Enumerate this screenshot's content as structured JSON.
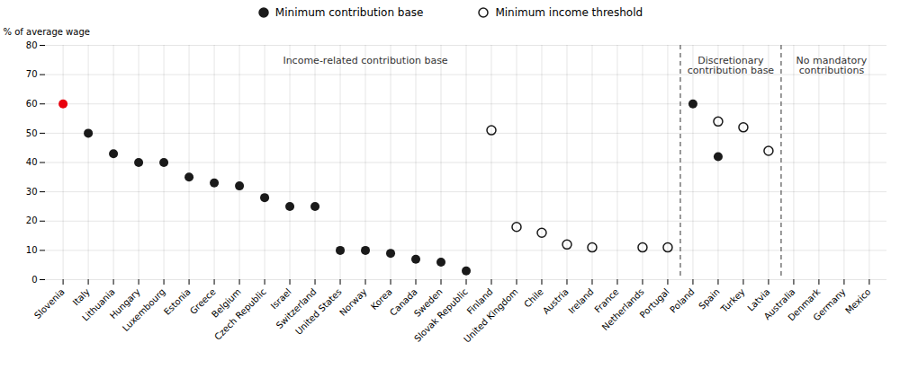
{
  "chart_data": {
    "type": "scatter",
    "categories": [
      "Slovenia",
      "Italy",
      "Lithuania",
      "Hungary",
      "Luxembourg",
      "Estonia",
      "Greece",
      "Belgium",
      "Czech Republic",
      "Israel",
      "Switzerland",
      "United States",
      "Norway",
      "Korea",
      "Canada",
      "Sweden",
      "Slovak Republic",
      "Finland",
      "United Kingdom",
      "Chile",
      "Austria",
      "Ireland",
      "France",
      "Netherlands",
      "Portugal",
      "Poland",
      "Spain",
      "Turkey",
      "Latvia",
      "Australia",
      "Denmark",
      "Germany",
      "Mexico"
    ],
    "series": [
      {
        "name": "Minimum contribution base",
        "color": "#1a1a1a",
        "marker": "circle",
        "values": [
          60,
          50,
          43,
          40,
          40,
          35,
          33,
          32,
          28,
          25,
          25,
          10,
          10,
          9,
          7,
          6,
          3,
          null,
          null,
          null,
          null,
          null,
          null,
          null,
          null,
          60,
          42,
          null,
          null,
          null,
          null,
          null,
          null
        ],
        "colors": [
          "#e8000d",
          "#1a1a1a",
          "#1a1a1a",
          "#1a1a1a",
          "#1a1a1a",
          "#1a1a1a",
          "#1a1a1a",
          "#1a1a1a",
          "#1a1a1a",
          "#1a1a1a",
          "#1a1a1a",
          "#1a1a1a",
          "#1a1a1a",
          "#1a1a1a",
          "#1a1a1a",
          "#1a1a1a",
          "#1a1a1a",
          null,
          null,
          null,
          null,
          null,
          null,
          null,
          null,
          "#1a1a1a",
          "#1a1a1a",
          null,
          null,
          null,
          null,
          null,
          null
        ]
      },
      {
        "name": "Minimum income threshold",
        "color": "#1a1a1a",
        "marker": "open_circle",
        "values": [
          null,
          null,
          null,
          null,
          null,
          null,
          null,
          null,
          null,
          null,
          null,
          null,
          null,
          null,
          null,
          null,
          null,
          51,
          18,
          16,
          12,
          11,
          null,
          11,
          11,
          null,
          54,
          52,
          44,
          null,
          null,
          null,
          null
        ]
      }
    ],
    "ylabel": "% of average wage",
    "ylim": [
      0,
      80
    ],
    "yticks": [
      0,
      10,
      20,
      30,
      40,
      50,
      60,
      70,
      80
    ],
    "grid": true,
    "legend": "top",
    "annotations": [
      {
        "text": "Income-related contribution base",
        "from": "Slovenia",
        "to": "Portugal",
        "y": 76
      },
      {
        "text": "Discretionary\ncontribution base",
        "from": "Poland",
        "to": "Latvia",
        "y": 76
      },
      {
        "text": "No mandatory\ncontributions",
        "from": "Australia",
        "to": "Mexico",
        "y": 76
      }
    ]
  }
}
